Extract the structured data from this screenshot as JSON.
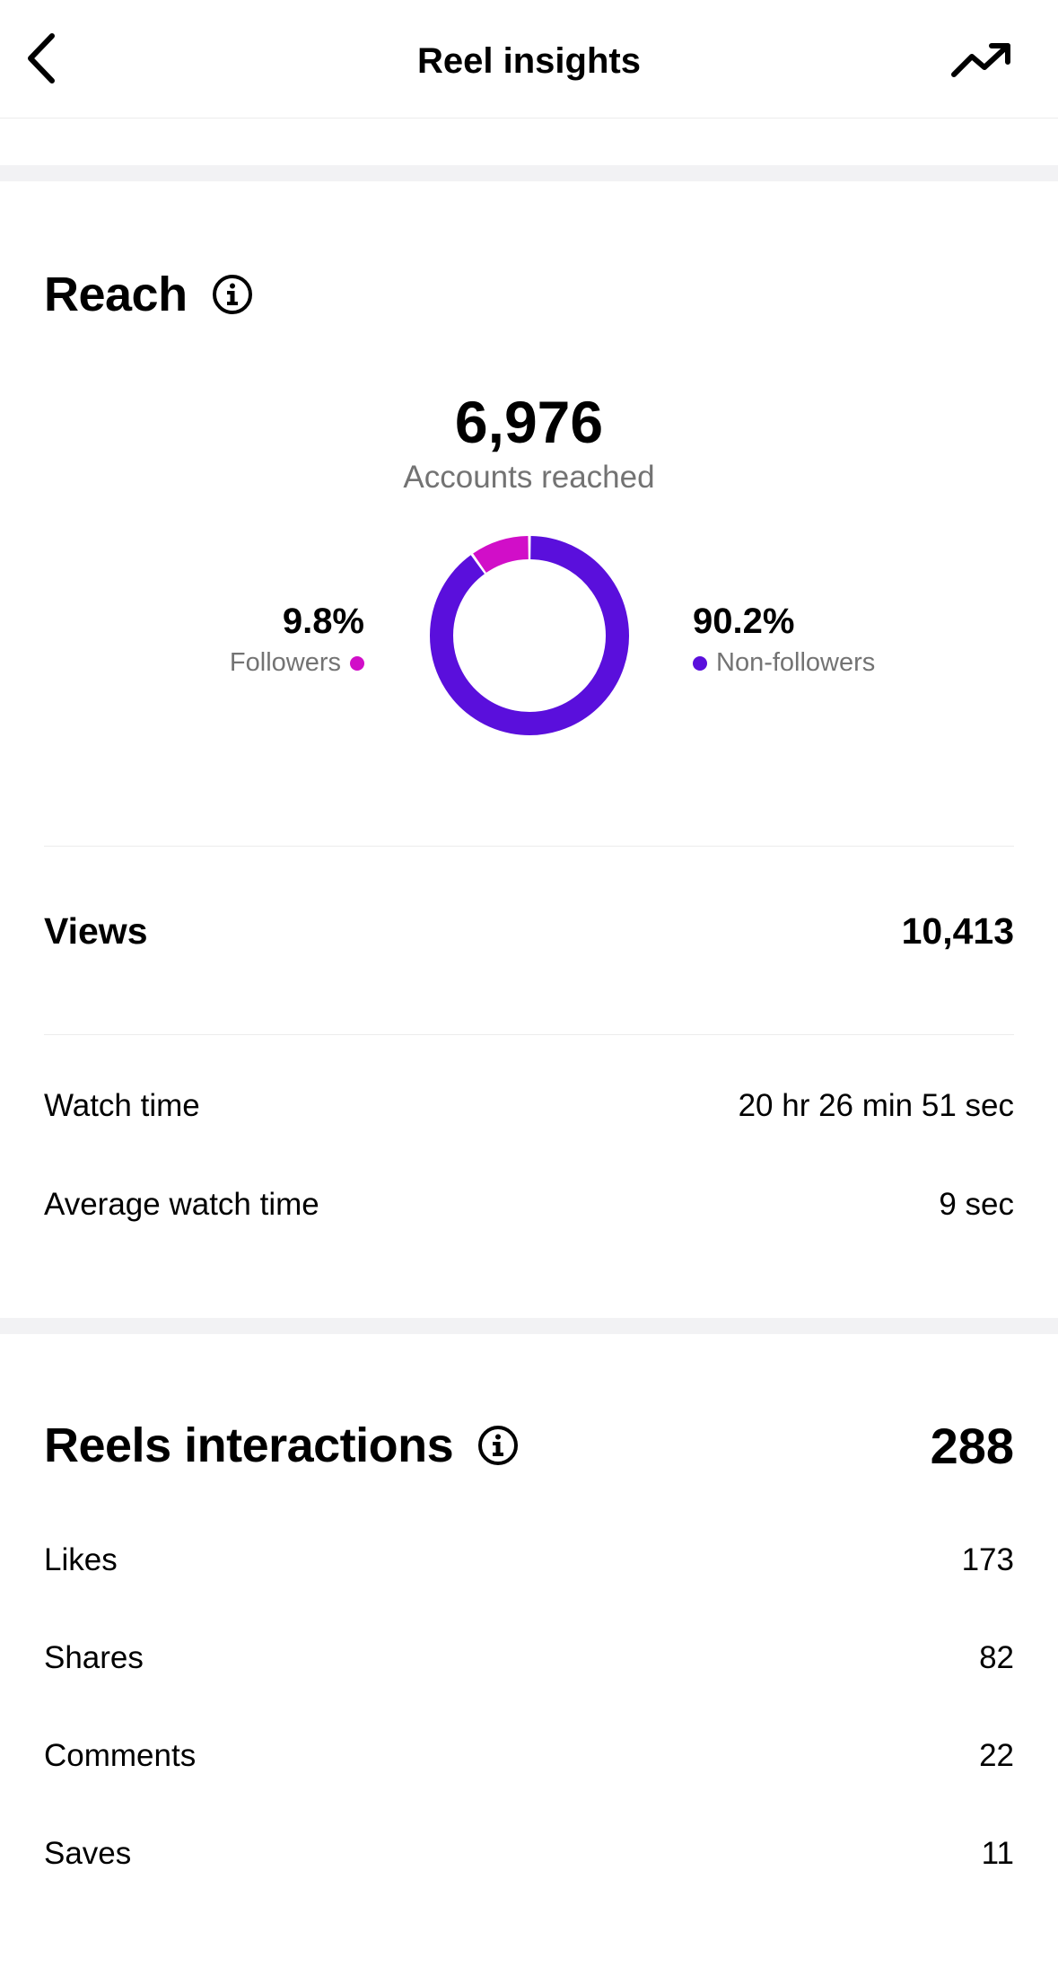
{
  "header": {
    "title": "Reel insights",
    "back_icon": "chevron-left-icon",
    "trend_icon": "trending-up-icon"
  },
  "reach": {
    "title": "Reach",
    "info_icon": "info-icon",
    "total": "6,976",
    "total_label": "Accounts reached",
    "followers_pct": "9.8%",
    "followers_label": "Followers",
    "followers_fraction": 0.098,
    "followers_color": "#d10ec8",
    "non_followers_pct": "90.2%",
    "non_followers_label": "Non-followers",
    "non_followers_fraction": 0.902,
    "non_followers_color": "#5a0fdc"
  },
  "views": {
    "label": "Views",
    "value": "10,413"
  },
  "watch": {
    "watch_time_label": "Watch time",
    "watch_time_value": "20 hr 26 min 51 sec",
    "avg_label": "Average watch time",
    "avg_value": "9 sec"
  },
  "interactions": {
    "title": "Reels interactions",
    "info_icon": "info-icon",
    "total": "288",
    "items": [
      {
        "label": "Likes",
        "value": "173"
      },
      {
        "label": "Shares",
        "value": "82"
      },
      {
        "label": "Comments",
        "value": "22"
      },
      {
        "label": "Saves",
        "value": "11"
      }
    ]
  }
}
